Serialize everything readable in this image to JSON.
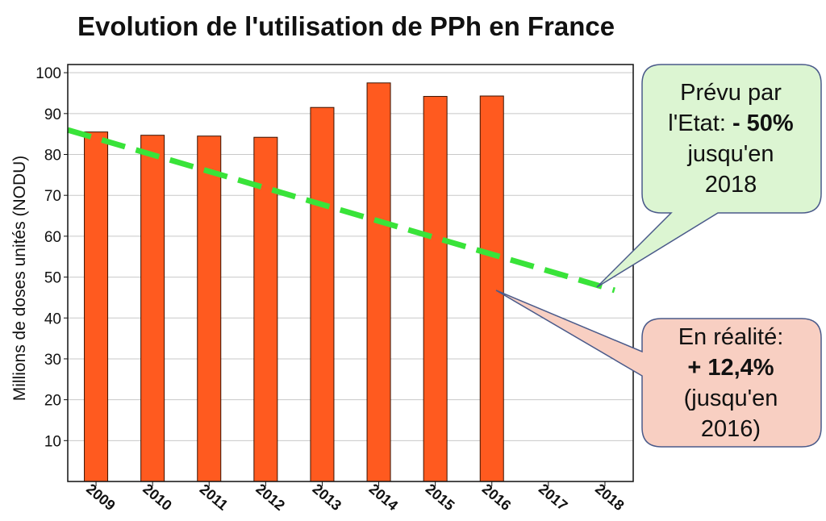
{
  "chart_data": {
    "type": "bar",
    "title": "Evolution de l'utilisation de PPh en France",
    "ylabel": "Millions de doses unités (NODU)",
    "xlabel": "",
    "categories": [
      "2009",
      "2010",
      "2011",
      "2012",
      "2013",
      "2014",
      "2015",
      "2016",
      "2017",
      "2018"
    ],
    "series": [
      {
        "values": [
          85.5,
          84.7,
          84.5,
          84.2,
          91.5,
          97.5,
          94.2,
          94.3,
          null,
          null
        ]
      }
    ],
    "trend_line": {
      "x": [
        "2009",
        "2018"
      ],
      "y": [
        86,
        47.5
      ]
    },
    "ylim": [
      0,
      102
    ],
    "yticks": [
      10,
      20,
      30,
      40,
      50,
      60,
      70,
      80,
      90,
      100
    ],
    "grid": true,
    "legend": "none",
    "annotations": {
      "planned": {
        "lines": [
          "Prévu par",
          "l'Etat:",
          "- 50%",
          "jusqu'en",
          "2018"
        ]
      },
      "actual": {
        "lines": [
          "En réalité:",
          "+ 12,4%",
          "(jusqu'en",
          "2016)"
        ]
      }
    }
  },
  "colors": {
    "bar": "#ff5a1f",
    "bar_edge": "#3a1200",
    "trend": "#39e339",
    "grid": "#c8c8c8",
    "planned_fill": "#dcf5d2",
    "actual_fill": "#f8cfc2",
    "callout_edge": "#4a5a8a"
  }
}
